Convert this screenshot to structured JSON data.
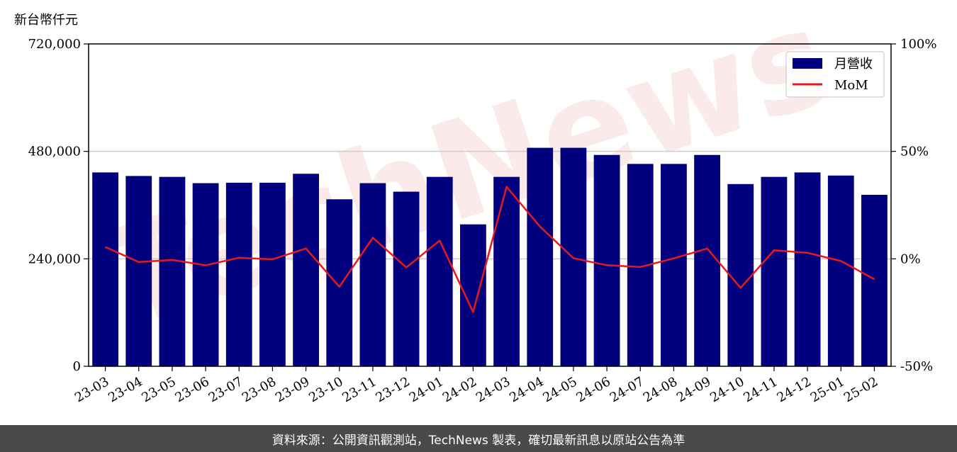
{
  "unit_label": "新台幣仟元",
  "footer": "資料來源：公開資訊觀測站，TechNews 製表，確切最新訊息以原站公告為準",
  "watermark": "TechNews",
  "colors": {
    "bar": "#00007f",
    "line": "#e8191c",
    "grid": "#cccccc",
    "footer_bg": "#4a4a4a",
    "watermark": "#f6d9d9"
  },
  "chart_data": {
    "type": "bar",
    "categories": [
      "23-03",
      "23-04",
      "23-05",
      "23-06",
      "23-07",
      "23-08",
      "23-09",
      "23-10",
      "23-11",
      "23-12",
      "24-01",
      "24-02",
      "24-03",
      "24-04",
      "24-05",
      "24-06",
      "24-07",
      "24-08",
      "24-09",
      "24-10",
      "24-11",
      "24-12",
      "25-01",
      "25-02"
    ],
    "series": [
      {
        "name": "月營收",
        "type": "bar",
        "axis": "left",
        "values": [
          433000,
          425000,
          423000,
          409000,
          410000,
          410000,
          430000,
          373000,
          409000,
          390000,
          423000,
          317000,
          423000,
          488000,
          488000,
          472000,
          452000,
          452000,
          472000,
          407000,
          423000,
          433000,
          426000,
          383000
        ]
      },
      {
        "name": "MoM",
        "type": "line",
        "axis": "right",
        "values": [
          5.5,
          -1.5,
          -0.5,
          -3.0,
          0.5,
          -0.2,
          4.8,
          -13.0,
          9.8,
          -4.0,
          8.5,
          -24.8,
          33.5,
          15.0,
          0.3,
          -3.0,
          -3.8,
          0.2,
          4.8,
          -13.5,
          4.0,
          2.8,
          -1.0,
          -9.5
        ]
      }
    ],
    "y_left": {
      "ylim": [
        0,
        720000
      ],
      "ticks": [
        "0",
        "240,000",
        "480,000",
        "720,000"
      ],
      "tick_values": [
        0,
        240000,
        480000,
        720000
      ]
    },
    "y_right": {
      "ylim": [
        -50,
        100
      ],
      "ticks": [
        "-50%",
        "0%",
        "50%",
        "100%"
      ],
      "tick_values": [
        -50,
        0,
        50,
        100
      ]
    },
    "grid": "horizontal",
    "legend_position": "top-right"
  }
}
